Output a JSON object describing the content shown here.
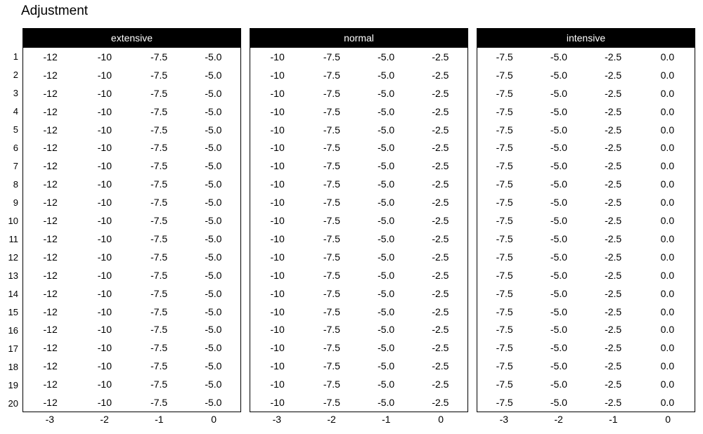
{
  "title": "Adjustment",
  "row_labels": [
    "1",
    "2",
    "3",
    "4",
    "5",
    "6",
    "7",
    "8",
    "9",
    "10",
    "11",
    "12",
    "13",
    "14",
    "15",
    "16",
    "17",
    "18",
    "19",
    "20"
  ],
  "x_labels": [
    "-3",
    "-2",
    "-1",
    "0"
  ],
  "panels": [
    {
      "label": "extensive",
      "matrix": [
        [
          "-12",
          "-10",
          "-7.5",
          "-5.0"
        ],
        [
          "-12",
          "-10",
          "-7.5",
          "-5.0"
        ],
        [
          "-12",
          "-10",
          "-7.5",
          "-5.0"
        ],
        [
          "-12",
          "-10",
          "-7.5",
          "-5.0"
        ],
        [
          "-12",
          "-10",
          "-7.5",
          "-5.0"
        ],
        [
          "-12",
          "-10",
          "-7.5",
          "-5.0"
        ],
        [
          "-12",
          "-10",
          "-7.5",
          "-5.0"
        ],
        [
          "-12",
          "-10",
          "-7.5",
          "-5.0"
        ],
        [
          "-12",
          "-10",
          "-7.5",
          "-5.0"
        ],
        [
          "-12",
          "-10",
          "-7.5",
          "-5.0"
        ],
        [
          "-12",
          "-10",
          "-7.5",
          "-5.0"
        ],
        [
          "-12",
          "-10",
          "-7.5",
          "-5.0"
        ],
        [
          "-12",
          "-10",
          "-7.5",
          "-5.0"
        ],
        [
          "-12",
          "-10",
          "-7.5",
          "-5.0"
        ],
        [
          "-12",
          "-10",
          "-7.5",
          "-5.0"
        ],
        [
          "-12",
          "-10",
          "-7.5",
          "-5.0"
        ],
        [
          "-12",
          "-10",
          "-7.5",
          "-5.0"
        ],
        [
          "-12",
          "-10",
          "-7.5",
          "-5.0"
        ],
        [
          "-12",
          "-10",
          "-7.5",
          "-5.0"
        ],
        [
          "-12",
          "-10",
          "-7.5",
          "-5.0"
        ]
      ]
    },
    {
      "label": "normal",
      "matrix": [
        [
          "-10",
          "-7.5",
          "-5.0",
          "-2.5"
        ],
        [
          "-10",
          "-7.5",
          "-5.0",
          "-2.5"
        ],
        [
          "-10",
          "-7.5",
          "-5.0",
          "-2.5"
        ],
        [
          "-10",
          "-7.5",
          "-5.0",
          "-2.5"
        ],
        [
          "-10",
          "-7.5",
          "-5.0",
          "-2.5"
        ],
        [
          "-10",
          "-7.5",
          "-5.0",
          "-2.5"
        ],
        [
          "-10",
          "-7.5",
          "-5.0",
          "-2.5"
        ],
        [
          "-10",
          "-7.5",
          "-5.0",
          "-2.5"
        ],
        [
          "-10",
          "-7.5",
          "-5.0",
          "-2.5"
        ],
        [
          "-10",
          "-7.5",
          "-5.0",
          "-2.5"
        ],
        [
          "-10",
          "-7.5",
          "-5.0",
          "-2.5"
        ],
        [
          "-10",
          "-7.5",
          "-5.0",
          "-2.5"
        ],
        [
          "-10",
          "-7.5",
          "-5.0",
          "-2.5"
        ],
        [
          "-10",
          "-7.5",
          "-5.0",
          "-2.5"
        ],
        [
          "-10",
          "-7.5",
          "-5.0",
          "-2.5"
        ],
        [
          "-10",
          "-7.5",
          "-5.0",
          "-2.5"
        ],
        [
          "-10",
          "-7.5",
          "-5.0",
          "-2.5"
        ],
        [
          "-10",
          "-7.5",
          "-5.0",
          "-2.5"
        ],
        [
          "-10",
          "-7.5",
          "-5.0",
          "-2.5"
        ],
        [
          "-10",
          "-7.5",
          "-5.0",
          "-2.5"
        ]
      ]
    },
    {
      "label": "intensive",
      "matrix": [
        [
          "-7.5",
          "-5.0",
          "-2.5",
          "0.0"
        ],
        [
          "-7.5",
          "-5.0",
          "-2.5",
          "0.0"
        ],
        [
          "-7.5",
          "-5.0",
          "-2.5",
          "0.0"
        ],
        [
          "-7.5",
          "-5.0",
          "-2.5",
          "0.0"
        ],
        [
          "-7.5",
          "-5.0",
          "-2.5",
          "0.0"
        ],
        [
          "-7.5",
          "-5.0",
          "-2.5",
          "0.0"
        ],
        [
          "-7.5",
          "-5.0",
          "-2.5",
          "0.0"
        ],
        [
          "-7.5",
          "-5.0",
          "-2.5",
          "0.0"
        ],
        [
          "-7.5",
          "-5.0",
          "-2.5",
          "0.0"
        ],
        [
          "-7.5",
          "-5.0",
          "-2.5",
          "0.0"
        ],
        [
          "-7.5",
          "-5.0",
          "-2.5",
          "0.0"
        ],
        [
          "-7.5",
          "-5.0",
          "-2.5",
          "0.0"
        ],
        [
          "-7.5",
          "-5.0",
          "-2.5",
          "0.0"
        ],
        [
          "-7.5",
          "-5.0",
          "-2.5",
          "0.0"
        ],
        [
          "-7.5",
          "-5.0",
          "-2.5",
          "0.0"
        ],
        [
          "-7.5",
          "-5.0",
          "-2.5",
          "0.0"
        ],
        [
          "-7.5",
          "-5.0",
          "-2.5",
          "0.0"
        ],
        [
          "-7.5",
          "-5.0",
          "-2.5",
          "0.0"
        ],
        [
          "-7.5",
          "-5.0",
          "-2.5",
          "0.0"
        ],
        [
          "-7.5",
          "-5.0",
          "-2.5",
          "0.0"
        ]
      ]
    }
  ],
  "colors": {
    "header_bg": "#000000",
    "header_text": "#ffffff",
    "border": "#000000",
    "text": "#000000",
    "background": "#ffffff"
  },
  "chart_data": {
    "type": "table",
    "title": "Adjustment",
    "facets": [
      "extensive",
      "normal",
      "intensive"
    ],
    "x_ticks": [
      -3,
      -2,
      -1,
      0
    ],
    "row_ids": [
      1,
      2,
      3,
      4,
      5,
      6,
      7,
      8,
      9,
      10,
      11,
      12,
      13,
      14,
      15,
      16,
      17,
      18,
      19,
      20
    ],
    "series": [
      {
        "name": "extensive",
        "values_per_row": [
          -12,
          -10,
          -7.5,
          -5.0
        ]
      },
      {
        "name": "normal",
        "values_per_row": [
          -10,
          -7.5,
          -5.0,
          -2.5
        ]
      },
      {
        "name": "intensive",
        "values_per_row": [
          -7.5,
          -5.0,
          -2.5,
          0.0
        ]
      }
    ],
    "legend_position": "none",
    "grid": false
  }
}
